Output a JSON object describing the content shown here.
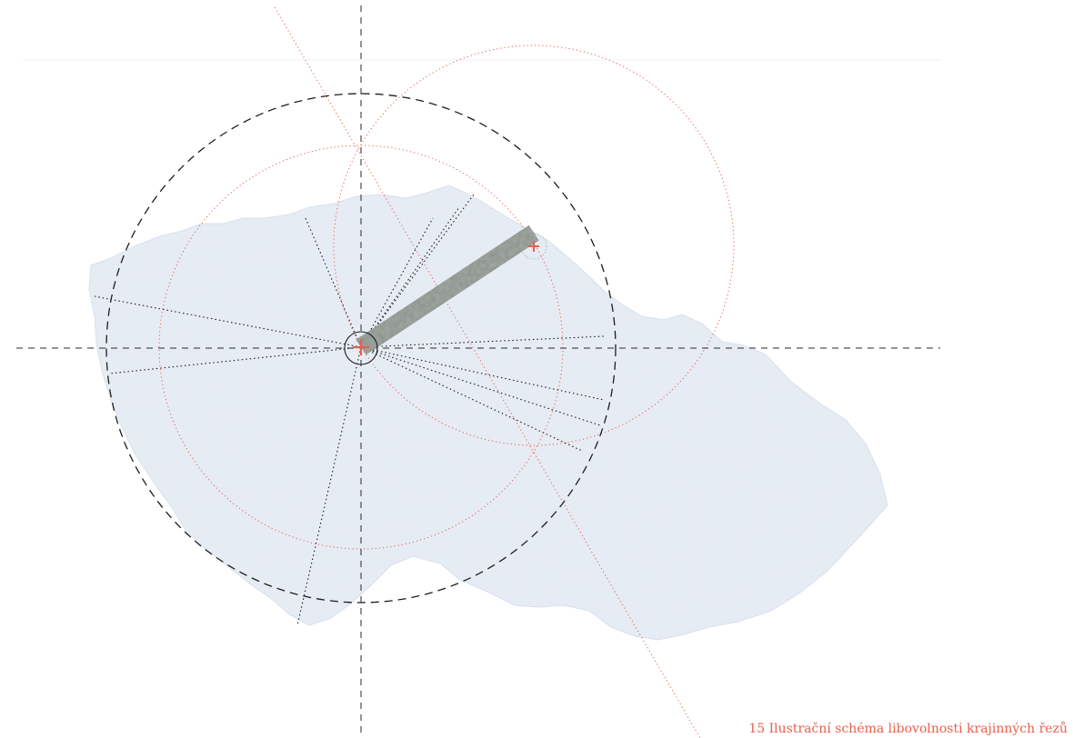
{
  "figure": {
    "caption": "15 Ilustrační schéma libovolnosti krajinných řezů"
  },
  "colors": {
    "accent": "#e8604c",
    "terrain": "#e3e9f2",
    "terrain_shade": "#c9d3e2",
    "guide": "#222222",
    "strip": "#8c938c"
  },
  "diagram": {
    "subject": "landscape cross-section (terrain slice) shown on map of Czech Republic",
    "guides": [
      "black dashed circle",
      "black dashed crosshair axes",
      "black dotted radial lines",
      "red dotted circles",
      "red dotted diagonal line"
    ],
    "markers": [
      "red cross at centre",
      "red cross at strip end"
    ]
  }
}
